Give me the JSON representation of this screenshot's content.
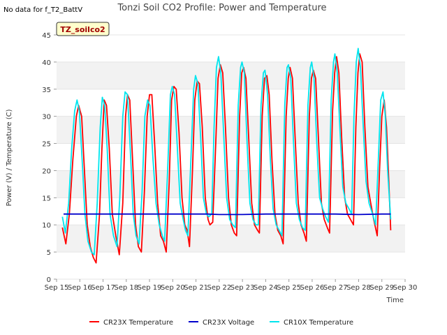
{
  "no_data_text": "No data for f_T2_BattV",
  "site_badge": "TZ_soilco2",
  "chart_data": {
    "type": "line",
    "title": "Tonzi Soil CO2 Profile: Power and Temperature",
    "xlabel": "Time",
    "ylabel": "Power (V) / Temperature (C)",
    "x_unit": "day of September (fractional)",
    "xlim": [
      15,
      30
    ],
    "ylim": [
      0,
      45
    ],
    "x_ticks": [
      15,
      16,
      17,
      18,
      19,
      20,
      21,
      22,
      23,
      24,
      25,
      26,
      27,
      28,
      29,
      30
    ],
    "x_tick_labels": [
      "Sep 15",
      "Sep 16",
      "Sep 17",
      "Sep 18",
      "Sep 19",
      "Sep 20",
      "Sep 21",
      "Sep 22",
      "Sep 23",
      "Sep 24",
      "Sep 25",
      "Sep 26",
      "Sep 27",
      "Sep 28",
      "Sep 29",
      "Sep 30"
    ],
    "y_ticks": [
      0,
      5,
      10,
      15,
      20,
      25,
      30,
      35,
      40,
      45
    ],
    "y_tick_labels": [
      "0",
      "5",
      "10",
      "15",
      "20",
      "25",
      "30",
      "35",
      "40",
      "45"
    ],
    "grid": "horizontal bands",
    "legend_position": "bottom",
    "series": [
      {
        "name": "CR23X Temperature",
        "color": "#ff0000",
        "points": [
          [
            15.25,
            9.5
          ],
          [
            15.4,
            6.5
          ],
          [
            15.55,
            12
          ],
          [
            15.7,
            22
          ],
          [
            15.85,
            30
          ],
          [
            15.95,
            32
          ],
          [
            16.08,
            30
          ],
          [
            16.2,
            20
          ],
          [
            16.32,
            10
          ],
          [
            16.45,
            6
          ],
          [
            16.58,
            4
          ],
          [
            16.7,
            3
          ],
          [
            16.85,
            12
          ],
          [
            16.95,
            24
          ],
          [
            17.05,
            33
          ],
          [
            17.15,
            32
          ],
          [
            17.27,
            24
          ],
          [
            17.4,
            12
          ],
          [
            17.55,
            8
          ],
          [
            17.7,
            4.5
          ],
          [
            17.85,
            14
          ],
          [
            17.97,
            30
          ],
          [
            18.05,
            34
          ],
          [
            18.15,
            33
          ],
          [
            18.27,
            22
          ],
          [
            18.4,
            10
          ],
          [
            18.52,
            6
          ],
          [
            18.65,
            5
          ],
          [
            18.78,
            16
          ],
          [
            18.9,
            30
          ],
          [
            19.0,
            34
          ],
          [
            19.1,
            34
          ],
          [
            19.22,
            25
          ],
          [
            19.35,
            14
          ],
          [
            19.48,
            8
          ],
          [
            19.6,
            7
          ],
          [
            19.72,
            5
          ],
          [
            19.85,
            18
          ],
          [
            19.95,
            33
          ],
          [
            20.05,
            35.5
          ],
          [
            20.15,
            35
          ],
          [
            20.27,
            27
          ],
          [
            20.4,
            15
          ],
          [
            20.52,
            10
          ],
          [
            20.62,
            9
          ],
          [
            20.72,
            6
          ],
          [
            20.85,
            20
          ],
          [
            20.95,
            33
          ],
          [
            21.05,
            36.5
          ],
          [
            21.15,
            36
          ],
          [
            21.27,
            28
          ],
          [
            21.4,
            15
          ],
          [
            21.52,
            11
          ],
          [
            21.6,
            10
          ],
          [
            21.72,
            10.5
          ],
          [
            21.85,
            25
          ],
          [
            21.95,
            37
          ],
          [
            22.05,
            39.5
          ],
          [
            22.15,
            38
          ],
          [
            22.27,
            28
          ],
          [
            22.4,
            15
          ],
          [
            22.52,
            10
          ],
          [
            22.65,
            8.5
          ],
          [
            22.75,
            8
          ],
          [
            22.88,
            30
          ],
          [
            22.97,
            38
          ],
          [
            23.05,
            39
          ],
          [
            23.15,
            37
          ],
          [
            23.27,
            26
          ],
          [
            23.4,
            14
          ],
          [
            23.52,
            10
          ],
          [
            23.65,
            9
          ],
          [
            23.73,
            8.5
          ],
          [
            23.85,
            30
          ],
          [
            23.95,
            37
          ],
          [
            24.05,
            37.5
          ],
          [
            24.15,
            34
          ],
          [
            24.27,
            22
          ],
          [
            24.4,
            12
          ],
          [
            24.52,
            9
          ],
          [
            24.65,
            8
          ],
          [
            24.75,
            6.5
          ],
          [
            24.88,
            30
          ],
          [
            24.97,
            37
          ],
          [
            25.05,
            39
          ],
          [
            25.15,
            37
          ],
          [
            25.27,
            26
          ],
          [
            25.4,
            14
          ],
          [
            25.52,
            10
          ],
          [
            25.65,
            8.5
          ],
          [
            25.75,
            7
          ],
          [
            25.88,
            30
          ],
          [
            25.97,
            37
          ],
          [
            26.05,
            38.5
          ],
          [
            26.15,
            37
          ],
          [
            26.27,
            26
          ],
          [
            26.4,
            14
          ],
          [
            26.52,
            11
          ],
          [
            26.65,
            9.5
          ],
          [
            26.75,
            8.5
          ],
          [
            26.88,
            31
          ],
          [
            26.97,
            38
          ],
          [
            27.05,
            41
          ],
          [
            27.15,
            38
          ],
          [
            27.27,
            26
          ],
          [
            27.4,
            15
          ],
          [
            27.52,
            12
          ],
          [
            27.65,
            11
          ],
          [
            27.78,
            10
          ],
          [
            27.88,
            28
          ],
          [
            27.97,
            38
          ],
          [
            28.05,
            41.5
          ],
          [
            28.15,
            40
          ],
          [
            28.27,
            28
          ],
          [
            28.4,
            17
          ],
          [
            28.52,
            14
          ],
          [
            28.65,
            11
          ],
          [
            28.8,
            8
          ],
          [
            28.9,
            20
          ],
          [
            29.0,
            30
          ],
          [
            29.1,
            33
          ],
          [
            29.2,
            28
          ],
          [
            29.3,
            18
          ],
          [
            29.38,
            9
          ]
        ]
      },
      {
        "name": "CR23X Voltage",
        "color": "#0000cc",
        "points": [
          [
            15.3,
            12.0
          ],
          [
            16.5,
            12.0
          ],
          [
            17.5,
            12.0
          ],
          [
            18.5,
            12.0
          ],
          [
            19.5,
            12.0
          ],
          [
            20.5,
            12.0
          ],
          [
            21.5,
            12.0
          ],
          [
            22.0,
            11.9
          ],
          [
            23.0,
            11.9
          ],
          [
            24.0,
            12.0
          ],
          [
            25.0,
            12.0
          ],
          [
            26.0,
            12.0
          ],
          [
            27.0,
            12.0
          ],
          [
            28.0,
            11.9
          ],
          [
            29.0,
            12.0
          ],
          [
            29.38,
            12.0
          ]
        ]
      },
      {
        "name": "CR10X Temperature",
        "color": "#00e5ee",
        "points": [
          [
            15.25,
            11.5
          ],
          [
            15.38,
            8.5
          ],
          [
            15.52,
            14
          ],
          [
            15.65,
            24
          ],
          [
            15.78,
            31
          ],
          [
            15.88,
            33
          ],
          [
            15.98,
            31
          ],
          [
            16.1,
            22
          ],
          [
            16.22,
            12
          ],
          [
            16.35,
            7
          ],
          [
            16.5,
            5
          ],
          [
            16.62,
            4.5
          ],
          [
            16.75,
            14
          ],
          [
            16.88,
            28
          ],
          [
            16.97,
            33.5
          ],
          [
            17.07,
            32
          ],
          [
            17.18,
            24
          ],
          [
            17.3,
            12
          ],
          [
            17.45,
            8
          ],
          [
            17.6,
            6
          ],
          [
            17.72,
            15
          ],
          [
            17.85,
            30
          ],
          [
            17.95,
            34.5
          ],
          [
            18.05,
            34
          ],
          [
            18.17,
            24
          ],
          [
            18.3,
            12
          ],
          [
            18.42,
            8
          ],
          [
            18.55,
            6.5
          ],
          [
            18.68,
            16
          ],
          [
            18.8,
            30
          ],
          [
            18.92,
            33
          ],
          [
            19.02,
            32
          ],
          [
            19.15,
            22
          ],
          [
            19.28,
            14
          ],
          [
            19.42,
            10
          ],
          [
            19.55,
            8
          ],
          [
            19.65,
            7
          ],
          [
            19.78,
            20
          ],
          [
            19.9,
            34
          ],
          [
            19.98,
            35.5
          ],
          [
            20.08,
            34
          ],
          [
            20.2,
            24
          ],
          [
            20.32,
            14
          ],
          [
            20.45,
            11
          ],
          [
            20.55,
            9
          ],
          [
            20.65,
            8
          ],
          [
            20.78,
            22
          ],
          [
            20.9,
            35
          ],
          [
            20.98,
            37.5
          ],
          [
            21.08,
            36
          ],
          [
            21.2,
            26
          ],
          [
            21.32,
            15
          ],
          [
            21.45,
            12
          ],
          [
            21.55,
            11.5
          ],
          [
            21.68,
            12
          ],
          [
            21.78,
            28
          ],
          [
            21.88,
            39
          ],
          [
            21.97,
            41
          ],
          [
            22.07,
            38
          ],
          [
            22.2,
            26
          ],
          [
            22.32,
            15
          ],
          [
            22.45,
            11
          ],
          [
            22.58,
            10
          ],
          [
            22.7,
            9.5
          ],
          [
            22.82,
            32
          ],
          [
            22.92,
            39
          ],
          [
            22.98,
            40
          ],
          [
            23.08,
            38
          ],
          [
            23.2,
            25
          ],
          [
            23.32,
            14
          ],
          [
            23.45,
            11
          ],
          [
            23.58,
            10
          ],
          [
            23.68,
            10
          ],
          [
            23.8,
            32
          ],
          [
            23.9,
            38
          ],
          [
            23.97,
            38.5
          ],
          [
            24.08,
            34
          ],
          [
            24.2,
            22
          ],
          [
            24.32,
            13
          ],
          [
            24.45,
            10
          ],
          [
            24.58,
            9
          ],
          [
            24.7,
            8
          ],
          [
            24.82,
            32
          ],
          [
            24.92,
            39
          ],
          [
            24.98,
            39.5
          ],
          [
            25.08,
            37
          ],
          [
            25.2,
            25
          ],
          [
            25.32,
            14
          ],
          [
            25.45,
            11
          ],
          [
            25.58,
            9.5
          ],
          [
            25.7,
            9
          ],
          [
            25.82,
            32
          ],
          [
            25.92,
            39
          ],
          [
            25.98,
            40
          ],
          [
            26.08,
            37
          ],
          [
            26.2,
            25
          ],
          [
            26.32,
            15
          ],
          [
            26.45,
            13
          ],
          [
            26.58,
            11.5
          ],
          [
            26.7,
            10.5
          ],
          [
            26.82,
            33
          ],
          [
            26.92,
            40
          ],
          [
            26.98,
            41.5
          ],
          [
            27.08,
            38
          ],
          [
            27.2,
            27
          ],
          [
            27.32,
            17
          ],
          [
            27.45,
            14
          ],
          [
            27.58,
            13
          ],
          [
            27.7,
            12
          ],
          [
            27.8,
            30
          ],
          [
            27.9,
            40
          ],
          [
            27.98,
            42.5
          ],
          [
            28.08,
            39
          ],
          [
            28.2,
            28
          ],
          [
            28.32,
            18
          ],
          [
            28.45,
            14
          ],
          [
            28.6,
            12
          ],
          [
            28.73,
            10
          ],
          [
            28.85,
            22
          ],
          [
            28.95,
            33
          ],
          [
            29.05,
            34.5
          ],
          [
            29.15,
            30
          ],
          [
            29.25,
            20
          ],
          [
            29.38,
            11
          ]
        ]
      }
    ]
  }
}
